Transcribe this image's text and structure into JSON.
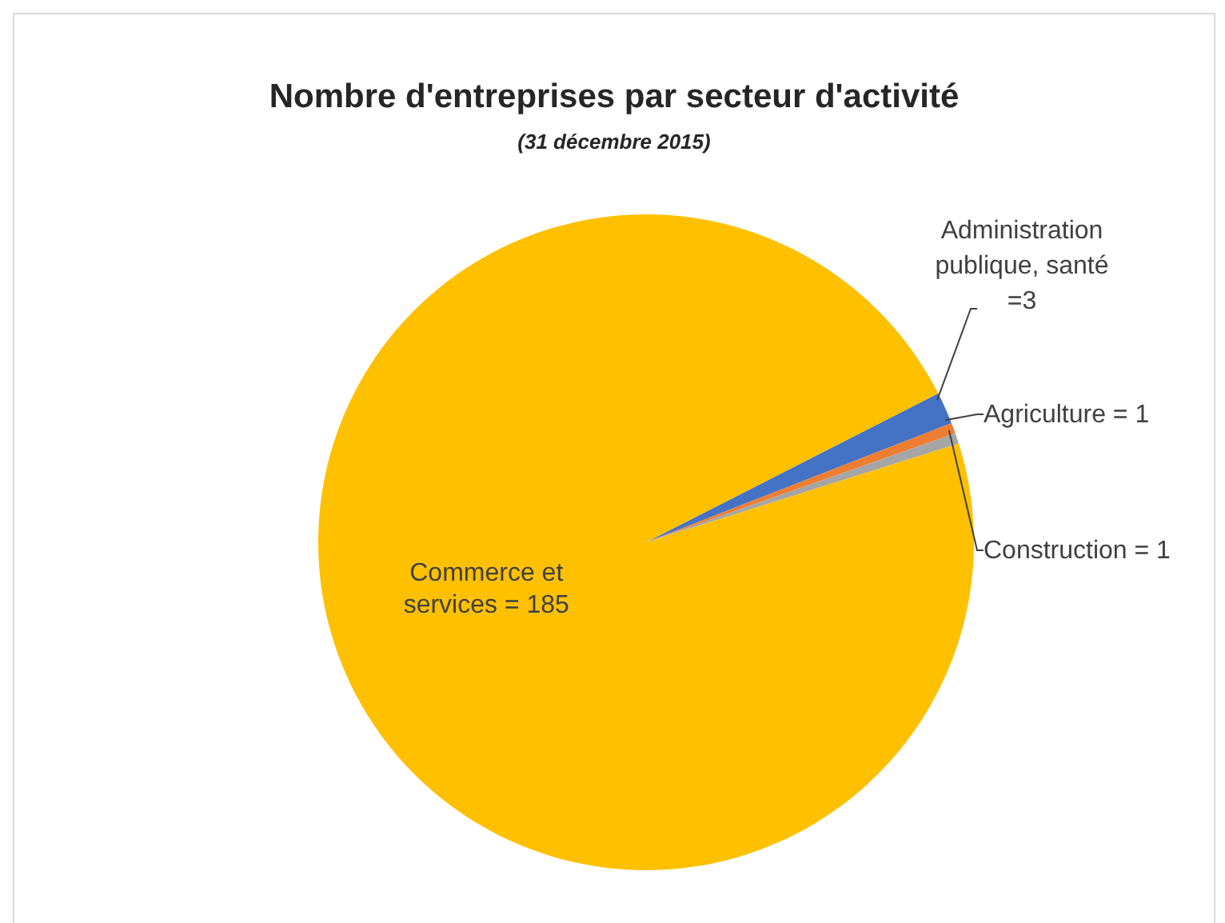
{
  "chart_data": {
    "type": "pie",
    "title": "Nombre d'entreprises par secteur d'activité",
    "subtitle": "(31 décembre 2015)",
    "categories": [
      "Administration publique, santé",
      "Agriculture",
      "Construction",
      "Commerce et services"
    ],
    "values": [
      3,
      1,
      1,
      185
    ],
    "colors": [
      "#4472c4",
      "#ed7d31",
      "#a5a5a5",
      "#ffc000"
    ],
    "value_labels": [
      "=3",
      "= 1",
      "= 1",
      "= 185"
    ],
    "legend": false
  }
}
